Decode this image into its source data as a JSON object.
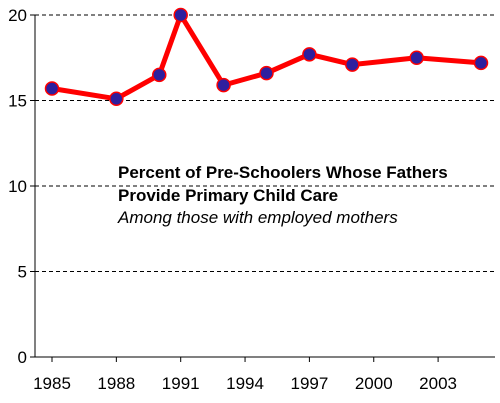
{
  "chart_data": {
    "type": "line",
    "title": "",
    "xlabel": "",
    "ylabel": "",
    "annotation": {
      "title_line1": "Percent of Pre-Schoolers Whose Fathers",
      "title_line2": "Provide Primary Child Care",
      "subtitle": "Among those with employed mothers"
    },
    "x": [
      1985,
      1988,
      1990,
      1991,
      1993,
      1995,
      1997,
      1999,
      2002,
      2005
    ],
    "series": [
      {
        "name": "",
        "values": [
          15.7,
          15.1,
          16.5,
          20.0,
          15.9,
          16.6,
          17.7,
          17.1,
          17.5,
          17.2
        ],
        "color": "#ff0000",
        "marker_color": "#2e1f9e"
      }
    ],
    "xticks": [
      "1985",
      "1988",
      "1991",
      "1994",
      "1997",
      "2000",
      "2003"
    ],
    "xtick_values": [
      1985,
      1988,
      1991,
      1994,
      1997,
      2000,
      2003
    ],
    "yticks": [
      "0",
      "5",
      "10",
      "15",
      "20"
    ],
    "ytick_values": [
      0,
      5,
      10,
      15,
      20
    ],
    "xlim": [
      1985,
      2005
    ],
    "ylim": [
      0,
      20
    ],
    "grid": "horizontal dashed"
  }
}
